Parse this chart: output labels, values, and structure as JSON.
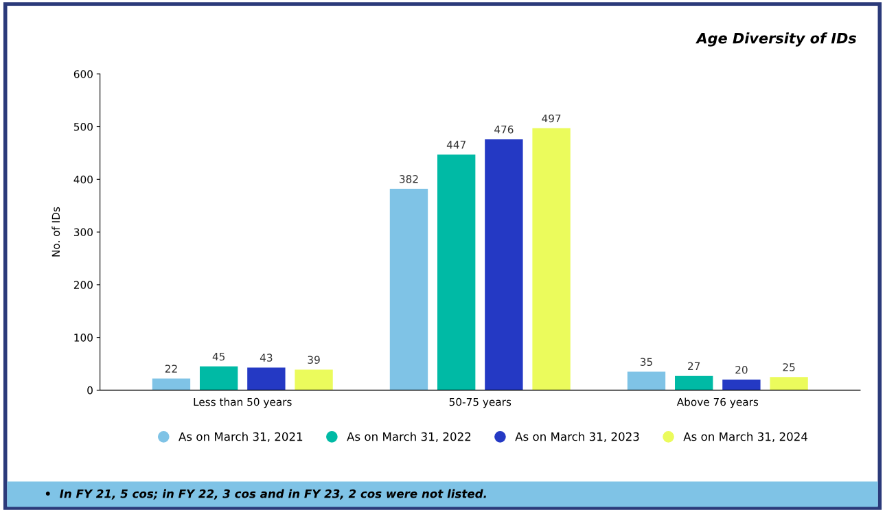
{
  "chart_data": {
    "type": "bar",
    "title": "Age Diversity of IDs",
    "ylabel": "No. of IDs",
    "categories": [
      "Less than 50 years",
      "50-75 years",
      "Above 76 years"
    ],
    "series": [
      {
        "name": "As on March 31, 2021",
        "color": "#7fc3e6",
        "values": [
          22,
          382,
          35
        ]
      },
      {
        "name": "As on March 31, 2022",
        "color": "#00baa5",
        "values": [
          45,
          447,
          27
        ]
      },
      {
        "name": "As on March 31, 2023",
        "color": "#2439c4",
        "values": [
          43,
          476,
          20
        ]
      },
      {
        "name": "As on March 31, 2024",
        "color": "#ebfb5c",
        "values": [
          39,
          497,
          25
        ]
      }
    ],
    "ylim": [
      0,
      600
    ],
    "yticks": [
      0,
      100,
      200,
      300,
      400,
      500,
      600
    ],
    "data_labels": true,
    "grid": false,
    "legend": "bottom",
    "annotations": [
      "•  In FY 21, 5 cos; in FY 22, 3 cos and in FY 23, 2 cos were not listed."
    ]
  }
}
